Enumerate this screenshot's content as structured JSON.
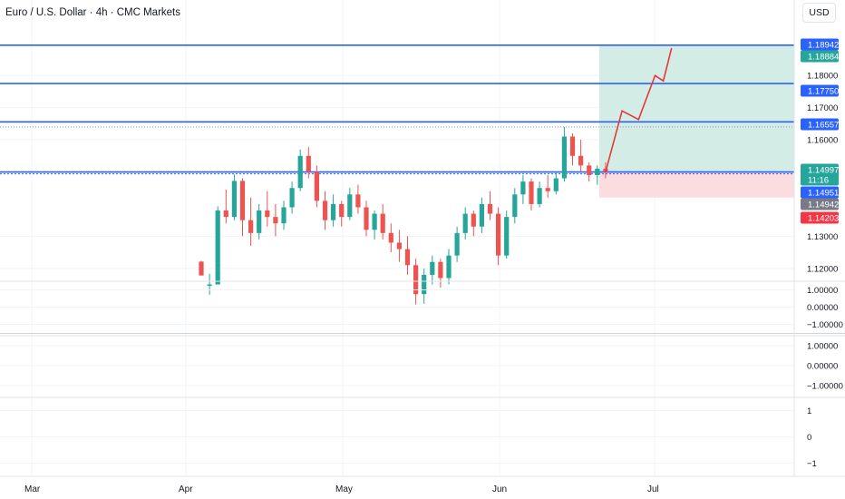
{
  "header": {
    "title": "Euro / U.S. Dollar · 4h · CMC Markets",
    "currency": "USD"
  },
  "colors": {
    "up": "#26a69a",
    "down": "#ef5350",
    "level": "#2962ff",
    "projection": "#e53935",
    "target_zone": "#d3ede6",
    "stop_zone": "#fbdde0",
    "grid": "#f0f3fa",
    "price_badge": "#26a69a",
    "stop_badge": "#f23645",
    "gray_badge": "#787b86",
    "dark_badge": "#131722"
  },
  "chart_data": [
    {
      "type": "candlestick",
      "series_name": "",
      "x_axis_labels": [
        "Mar",
        "Apr",
        "May",
        "Jun",
        "Jul"
      ],
      "y_ticks": [
        "1.18000",
        "1.17000",
        "1.16000",
        "1.13000",
        "1.12000"
      ],
      "ylim": [
        1.116,
        1.195
      ],
      "candles": [
        [
          1,
          1.1221,
          1.1224,
          1.1178,
          1.1178
        ],
        [
          2,
          1.1146,
          1.1183,
          1.1118,
          1.115
        ],
        [
          3,
          1.115,
          1.1393,
          1.115,
          1.138
        ],
        [
          4,
          1.138,
          1.1445,
          1.134,
          1.136
        ],
        [
          5,
          1.136,
          1.1492,
          1.135,
          1.1472
        ],
        [
          6,
          1.1472,
          1.148,
          1.13,
          1.135
        ],
        [
          7,
          1.135,
          1.142,
          1.127,
          1.131
        ],
        [
          8,
          1.131,
          1.14,
          1.129,
          1.138
        ],
        [
          9,
          1.138,
          1.144,
          1.133,
          1.136
        ],
        [
          10,
          1.136,
          1.14,
          1.13,
          1.134
        ],
        [
          11,
          1.134,
          1.141,
          1.132,
          1.139
        ],
        [
          12,
          1.139,
          1.147,
          1.137,
          1.145
        ],
        [
          13,
          1.145,
          1.157,
          1.144,
          1.155
        ],
        [
          14,
          1.155,
          1.1578,
          1.148,
          1.15
        ],
        [
          15,
          1.15,
          1.152,
          1.139,
          1.141
        ],
        [
          16,
          1.141,
          1.144,
          1.132,
          1.135
        ],
        [
          17,
          1.135,
          1.143,
          1.133,
          1.14
        ],
        [
          18,
          1.14,
          1.141,
          1.133,
          1.136
        ],
        [
          19,
          1.136,
          1.145,
          1.135,
          1.143
        ],
        [
          20,
          1.143,
          1.146,
          1.137,
          1.139
        ],
        [
          21,
          1.139,
          1.141,
          1.13,
          1.132
        ],
        [
          22,
          1.132,
          1.138,
          1.129,
          1.137
        ],
        [
          23,
          1.137,
          1.14,
          1.129,
          1.131
        ],
        [
          24,
          1.131,
          1.134,
          1.125,
          1.128
        ],
        [
          25,
          1.128,
          1.132,
          1.122,
          1.126
        ],
        [
          26,
          1.126,
          1.13,
          1.118,
          1.121
        ],
        [
          27,
          1.121,
          1.123,
          1.1088,
          1.112
        ],
        [
          28,
          1.112,
          1.12,
          1.109,
          1.118
        ],
        [
          29,
          1.118,
          1.124,
          1.115,
          1.122
        ],
        [
          30,
          1.122,
          1.123,
          1.114,
          1.117
        ],
        [
          31,
          1.117,
          1.126,
          1.115,
          1.124
        ],
        [
          32,
          1.124,
          1.133,
          1.122,
          1.131
        ],
        [
          33,
          1.131,
          1.139,
          1.129,
          1.137
        ],
        [
          34,
          1.137,
          1.138,
          1.13,
          1.133
        ],
        [
          35,
          1.133,
          1.142,
          1.131,
          1.14
        ],
        [
          36,
          1.14,
          1.144,
          1.135,
          1.137
        ],
        [
          37,
          1.137,
          1.139,
          1.121,
          1.124
        ],
        [
          38,
          1.124,
          1.138,
          1.123,
          1.136
        ],
        [
          39,
          1.136,
          1.145,
          1.134,
          1.143
        ],
        [
          40,
          1.143,
          1.149,
          1.14,
          1.147
        ],
        [
          41,
          1.147,
          1.148,
          1.138,
          1.14
        ],
        [
          42,
          1.14,
          1.147,
          1.139,
          1.145
        ],
        [
          43,
          1.145,
          1.149,
          1.142,
          1.144
        ],
        [
          44,
          1.144,
          1.15,
          1.143,
          1.148
        ],
        [
          45,
          1.148,
          1.164,
          1.147,
          1.161
        ],
        [
          46,
          1.161,
          1.162,
          1.152,
          1.155
        ],
        [
          47,
          1.155,
          1.16,
          1.15,
          1.152
        ],
        [
          48,
          1.152,
          1.153,
          1.147,
          1.149
        ],
        [
          49,
          1.149,
          1.152,
          1.146,
          1.151
        ],
        [
          50,
          1.151,
          1.153,
          1.148,
          1.15
        ]
      ],
      "horizontal_levels": [
        1.18942,
        1.1775,
        1.16557,
        1.14997
      ],
      "dotted_level": 1.164,
      "position_zone": {
        "entry": 1.14997,
        "target": 1.18942,
        "stop": 1.14203
      },
      "projection_path": [
        [
          50,
          1.14997
        ],
        [
          52,
          1.169
        ],
        [
          54,
          1.1663
        ],
        [
          56,
          1.18
        ],
        [
          57,
          1.1783
        ],
        [
          58,
          1.1885
        ]
      ],
      "price_badges": [
        {
          "text": "1.18942",
          "kind": "level"
        },
        {
          "text": "1.18884",
          "kind": "up"
        },
        {
          "text": "1.17750",
          "kind": "level"
        },
        {
          "text": "1.16557",
          "kind": "level"
        },
        {
          "text": "1.14997",
          "kind": "up"
        },
        {
          "text": "11:16",
          "kind": "up"
        },
        {
          "text": "1.14951",
          "kind": "level"
        },
        {
          "text": "1.14942",
          "kind": "gray"
        },
        {
          "text": "1.14203",
          "kind": "stop"
        }
      ]
    },
    {
      "type": "line",
      "series_name": "",
      "y_ticks": [
        "1.00000",
        "0.00000",
        "−1.00000"
      ],
      "ylim": [
        -1.5,
        1.5
      ],
      "values": []
    },
    {
      "type": "line",
      "series_name": "",
      "y_ticks": [
        "1.00000",
        "0.00000",
        "−1.00000"
      ],
      "ylim": [
        -1.5,
        1.5
      ],
      "values": []
    },
    {
      "type": "line",
      "series_name": "",
      "y_ticks": [
        "1",
        "0",
        "−1"
      ],
      "ylim": [
        -1.5,
        1.5
      ],
      "values": []
    }
  ]
}
